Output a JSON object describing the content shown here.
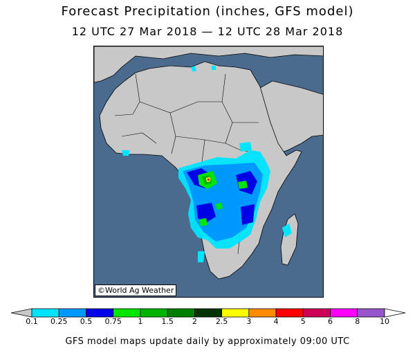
{
  "title": "Forecast Precipitation (inches, GFS model)",
  "subtitle": "12 UTC 27 Mar 2018 — 12 UTC 28 Mar 2018",
  "credit": "©World Ag Weather",
  "footer": "GFS model maps update daily by approximately 09:00 UTC",
  "legend": {
    "ticks": [
      "0.1",
      "0.25",
      "0.5",
      "0.75",
      "1",
      "1.5",
      "2",
      "2.5",
      "3",
      "4",
      "5",
      "6",
      "8",
      "10"
    ],
    "colors": [
      "#00e5ff",
      "#0099ff",
      "#0000e6",
      "#00e600",
      "#00b300",
      "#008000",
      "#003300",
      "#ffff00",
      "#ff8c00",
      "#ff0000",
      "#cc0055",
      "#ff00ff",
      "#9955cc"
    ],
    "colors_note": "bin colors between consecutive ticks, lowest to highest"
  },
  "colors": {
    "ocean": "#4a6b8d",
    "land": "#c8c8c8",
    "border": "#000000"
  }
}
